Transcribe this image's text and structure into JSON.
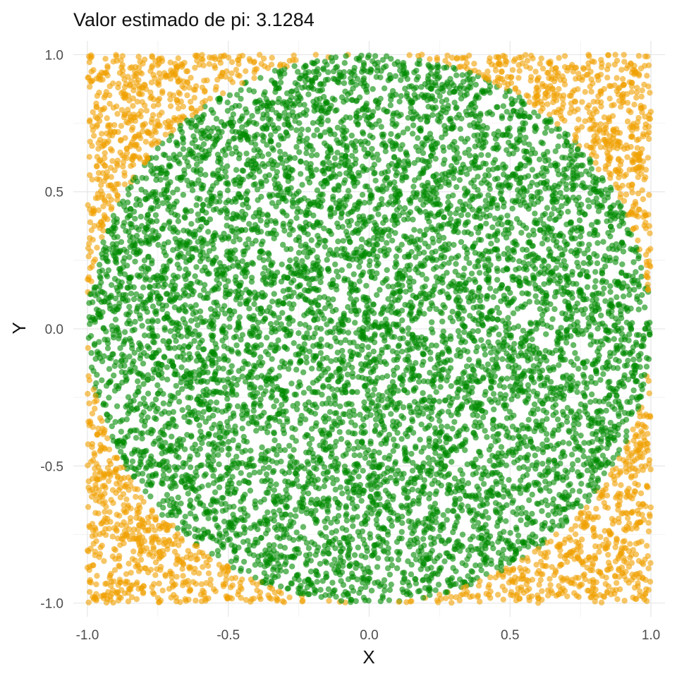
{
  "chart_data": {
    "type": "scatter",
    "title": "Valor estimado de pi: 3.1284",
    "xlabel": "X",
    "ylabel": "Y",
    "xlim": [
      -1.05,
      1.05
    ],
    "ylim": [
      -1.05,
      1.05
    ],
    "x_ticks": [
      -1.0,
      -0.5,
      0.0,
      0.5,
      1.0
    ],
    "y_ticks": [
      -1.0,
      -0.5,
      0.0,
      0.5,
      1.0
    ],
    "x_tick_labels": [
      "-1.0",
      "-0.5",
      "0.0",
      "0.5",
      "1.0"
    ],
    "y_tick_labels": [
      "-1.0",
      "-0.5",
      "0.0",
      "0.5",
      "1.0"
    ],
    "grid": true,
    "legend": "none",
    "point_count": 10000,
    "points_inside_circle": 7821,
    "series": [
      {
        "role": "inside-unit-circle",
        "color": "#008B00",
        "condition": "x^2 + y^2 <= 1"
      },
      {
        "role": "outside-unit-circle",
        "color": "#F0A000",
        "condition": "x^2 + y^2 > 1"
      }
    ],
    "distribution": "uniform",
    "domain": [
      -1.0,
      1.0
    ]
  }
}
